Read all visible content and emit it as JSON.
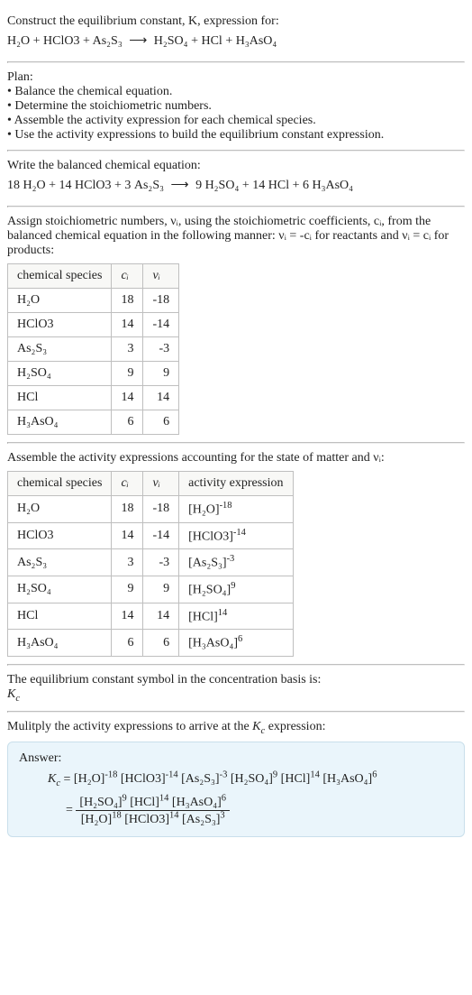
{
  "intro": {
    "line1": "Construct the equilibrium constant, K, expression for:",
    "equation_lhs": [
      "H₂O",
      "HClO3",
      "As₂S₃"
    ],
    "equation_rhs": [
      "H₂SO₄",
      "HCl",
      "H₃AsO₄"
    ],
    "arrow": "⟶"
  },
  "plan": {
    "title": "Plan:",
    "bullets": [
      "Balance the chemical equation.",
      "Determine the stoichiometric numbers.",
      "Assemble the activity expression for each chemical species.",
      "Use the activity expressions to build the equilibrium constant expression."
    ],
    "bullet_glyph": "•"
  },
  "balanced": {
    "title": "Write the balanced chemical equation:",
    "lhs": [
      {
        "coef": "18",
        "sp": "H₂O"
      },
      {
        "coef": "14",
        "sp": "HClO3"
      },
      {
        "coef": "3",
        "sp": "As₂S₃"
      }
    ],
    "rhs": [
      {
        "coef": "9",
        "sp": "H₂SO₄"
      },
      {
        "coef": "14",
        "sp": "HCl"
      },
      {
        "coef": "6",
        "sp": "H₃AsO₄"
      }
    ],
    "arrow": "⟶"
  },
  "stoich_intro": "Assign stoichiometric numbers, νᵢ, using the stoichiometric coefficients, cᵢ, from the balanced chemical equation in the following manner: νᵢ = -cᵢ for reactants and νᵢ = cᵢ for products:",
  "table1": {
    "headers": [
      "chemical species",
      "cᵢ",
      "νᵢ"
    ],
    "rows": [
      {
        "sp": "H₂O",
        "c": "18",
        "v": "-18"
      },
      {
        "sp": "HClO3",
        "c": "14",
        "v": "-14"
      },
      {
        "sp": "As₂S₃",
        "c": "3",
        "v": "-3"
      },
      {
        "sp": "H₂SO₄",
        "c": "9",
        "v": "9"
      },
      {
        "sp": "HCl",
        "c": "14",
        "v": "14"
      },
      {
        "sp": "H₃AsO₄",
        "c": "6",
        "v": "6"
      }
    ]
  },
  "activity_intro": "Assemble the activity expressions accounting for the state of matter and νᵢ:",
  "table2": {
    "headers": [
      "chemical species",
      "cᵢ",
      "νᵢ",
      "activity expression"
    ],
    "rows": [
      {
        "sp": "H₂O",
        "c": "18",
        "v": "-18",
        "base": "[H₂O]",
        "exp": "-18"
      },
      {
        "sp": "HClO3",
        "c": "14",
        "v": "-14",
        "base": "[HClO3]",
        "exp": "-14"
      },
      {
        "sp": "As₂S₃",
        "c": "3",
        "v": "-3",
        "base": "[As₂S₃]",
        "exp": "-3"
      },
      {
        "sp": "H₂SO₄",
        "c": "9",
        "v": "9",
        "base": "[H₂SO₄]",
        "exp": "9"
      },
      {
        "sp": "HCl",
        "c": "14",
        "v": "14",
        "base": "[HCl]",
        "exp": "14"
      },
      {
        "sp": "H₃AsO₄",
        "c": "6",
        "v": "6",
        "base": "[H₃AsO₄]",
        "exp": "6"
      }
    ]
  },
  "kc_intro1": "The equilibrium constant symbol in the concentration basis is:",
  "kc_symbol": "K_c",
  "kc_intro2": "Mulitply the activity expressions to arrive at the K_c expression:",
  "answer": {
    "label": "Answer:",
    "prefix": "K_c = ",
    "terms": [
      {
        "base": "[H₂O]",
        "exp": "-18"
      },
      {
        "base": "[HClO3]",
        "exp": "-14"
      },
      {
        "base": "[As₂S₃]",
        "exp": "-3"
      },
      {
        "base": "[H₂SO₄]",
        "exp": "9"
      },
      {
        "base": "[HCl]",
        "exp": "14"
      },
      {
        "base": "[H₃AsO₄]",
        "exp": "6"
      }
    ],
    "eq2_prefix": "= ",
    "frac_num": [
      {
        "base": "[H₂SO₄]",
        "exp": "9"
      },
      {
        "base": "[HCl]",
        "exp": "14"
      },
      {
        "base": "[H₃AsO₄]",
        "exp": "6"
      }
    ],
    "frac_den": [
      {
        "base": "[H₂O]",
        "exp": "18"
      },
      {
        "base": "[HClO3]",
        "exp": "14"
      },
      {
        "base": "[As₂S₃]",
        "exp": "3"
      }
    ]
  },
  "style": {
    "text_color": "#222222",
    "divider_color": "#bfbfbf",
    "table_border": "#bfbfbf",
    "table_header_bg": "#f8f8f6",
    "answer_bg": "#eaf5fb",
    "answer_border": "#c9dfeb",
    "base_fontsize": 14
  }
}
